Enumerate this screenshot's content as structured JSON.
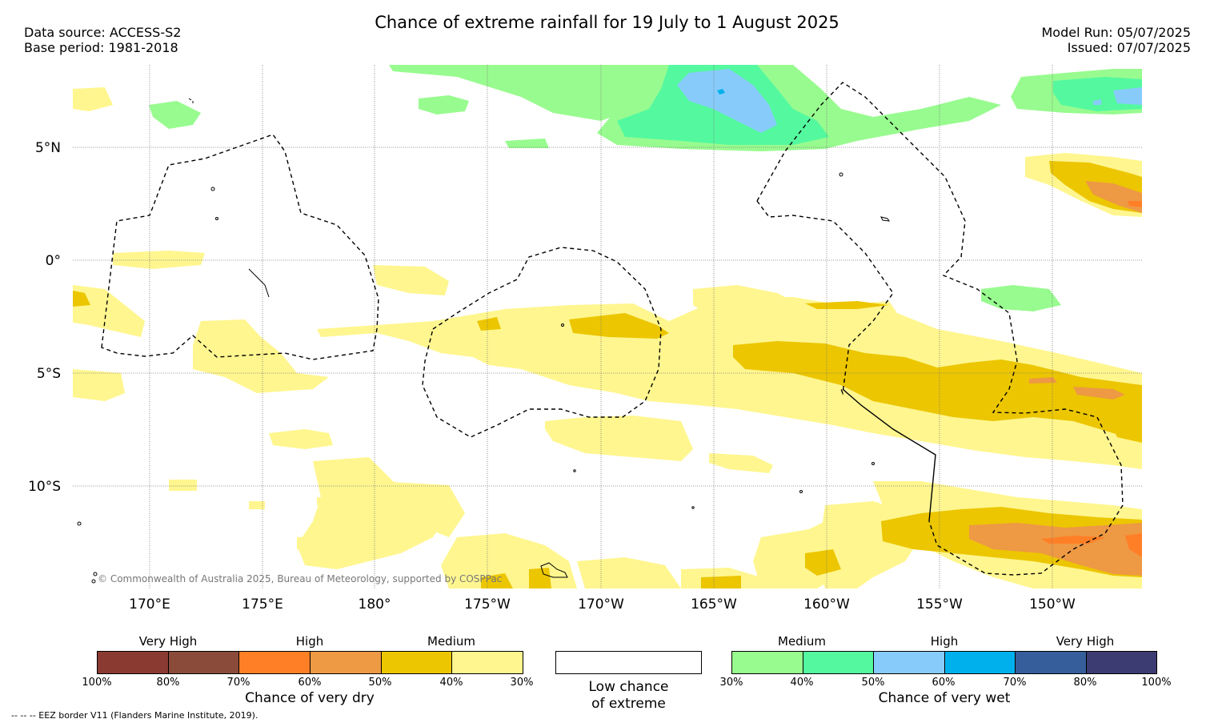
{
  "title": "Chance of extreme rainfall for 19 July to 1 August 2025",
  "data_source": "Data source: ACCESS-S2",
  "base_period": "Base period: 1981-2018",
  "model_run": "Model Run: 05/07/2025",
  "issued": "Issued: 07/07/2025",
  "copyright": "© Commonwealth of Australia 2025, Bureau of Meteorology, supported by COSPPac",
  "eez_note": "--  --  -- EEZ border V11 (Flanders Marine Institute, 2019).",
  "lat_labels": [
    "5°N",
    "0°",
    "5°S",
    "10°S"
  ],
  "lon_labels": [
    "170°E",
    "175°E",
    "180°",
    "175°W",
    "170°W",
    "165°W",
    "160°W",
    "155°W",
    "150°W"
  ],
  "dry_scale": {
    "headers": [
      "Very High",
      "High",
      "Medium"
    ],
    "ticks": [
      "100%",
      "80%",
      "70%",
      "60%",
      "50%",
      "40%",
      "30%"
    ],
    "colors": [
      "#8b3a32",
      "#8a4b3b",
      "#ff7f27",
      "#ee9944",
      "#ecc600",
      "#fff68f"
    ],
    "caption": "Chance of very dry"
  },
  "low_chance": {
    "line1": "Low chance",
    "line2": "of extreme",
    "color": "#ffffff"
  },
  "wet_scale": {
    "headers": [
      "Medium",
      "High",
      "Very High"
    ],
    "ticks": [
      "30%",
      "40%",
      "50%",
      "60%",
      "70%",
      "80%",
      "100%"
    ],
    "colors": [
      "#98fb8f",
      "#54f99f",
      "#87cbfb",
      "#00b0ec",
      "#365e9b",
      "#3c3b72"
    ],
    "caption": "Chance of very wet"
  }
}
